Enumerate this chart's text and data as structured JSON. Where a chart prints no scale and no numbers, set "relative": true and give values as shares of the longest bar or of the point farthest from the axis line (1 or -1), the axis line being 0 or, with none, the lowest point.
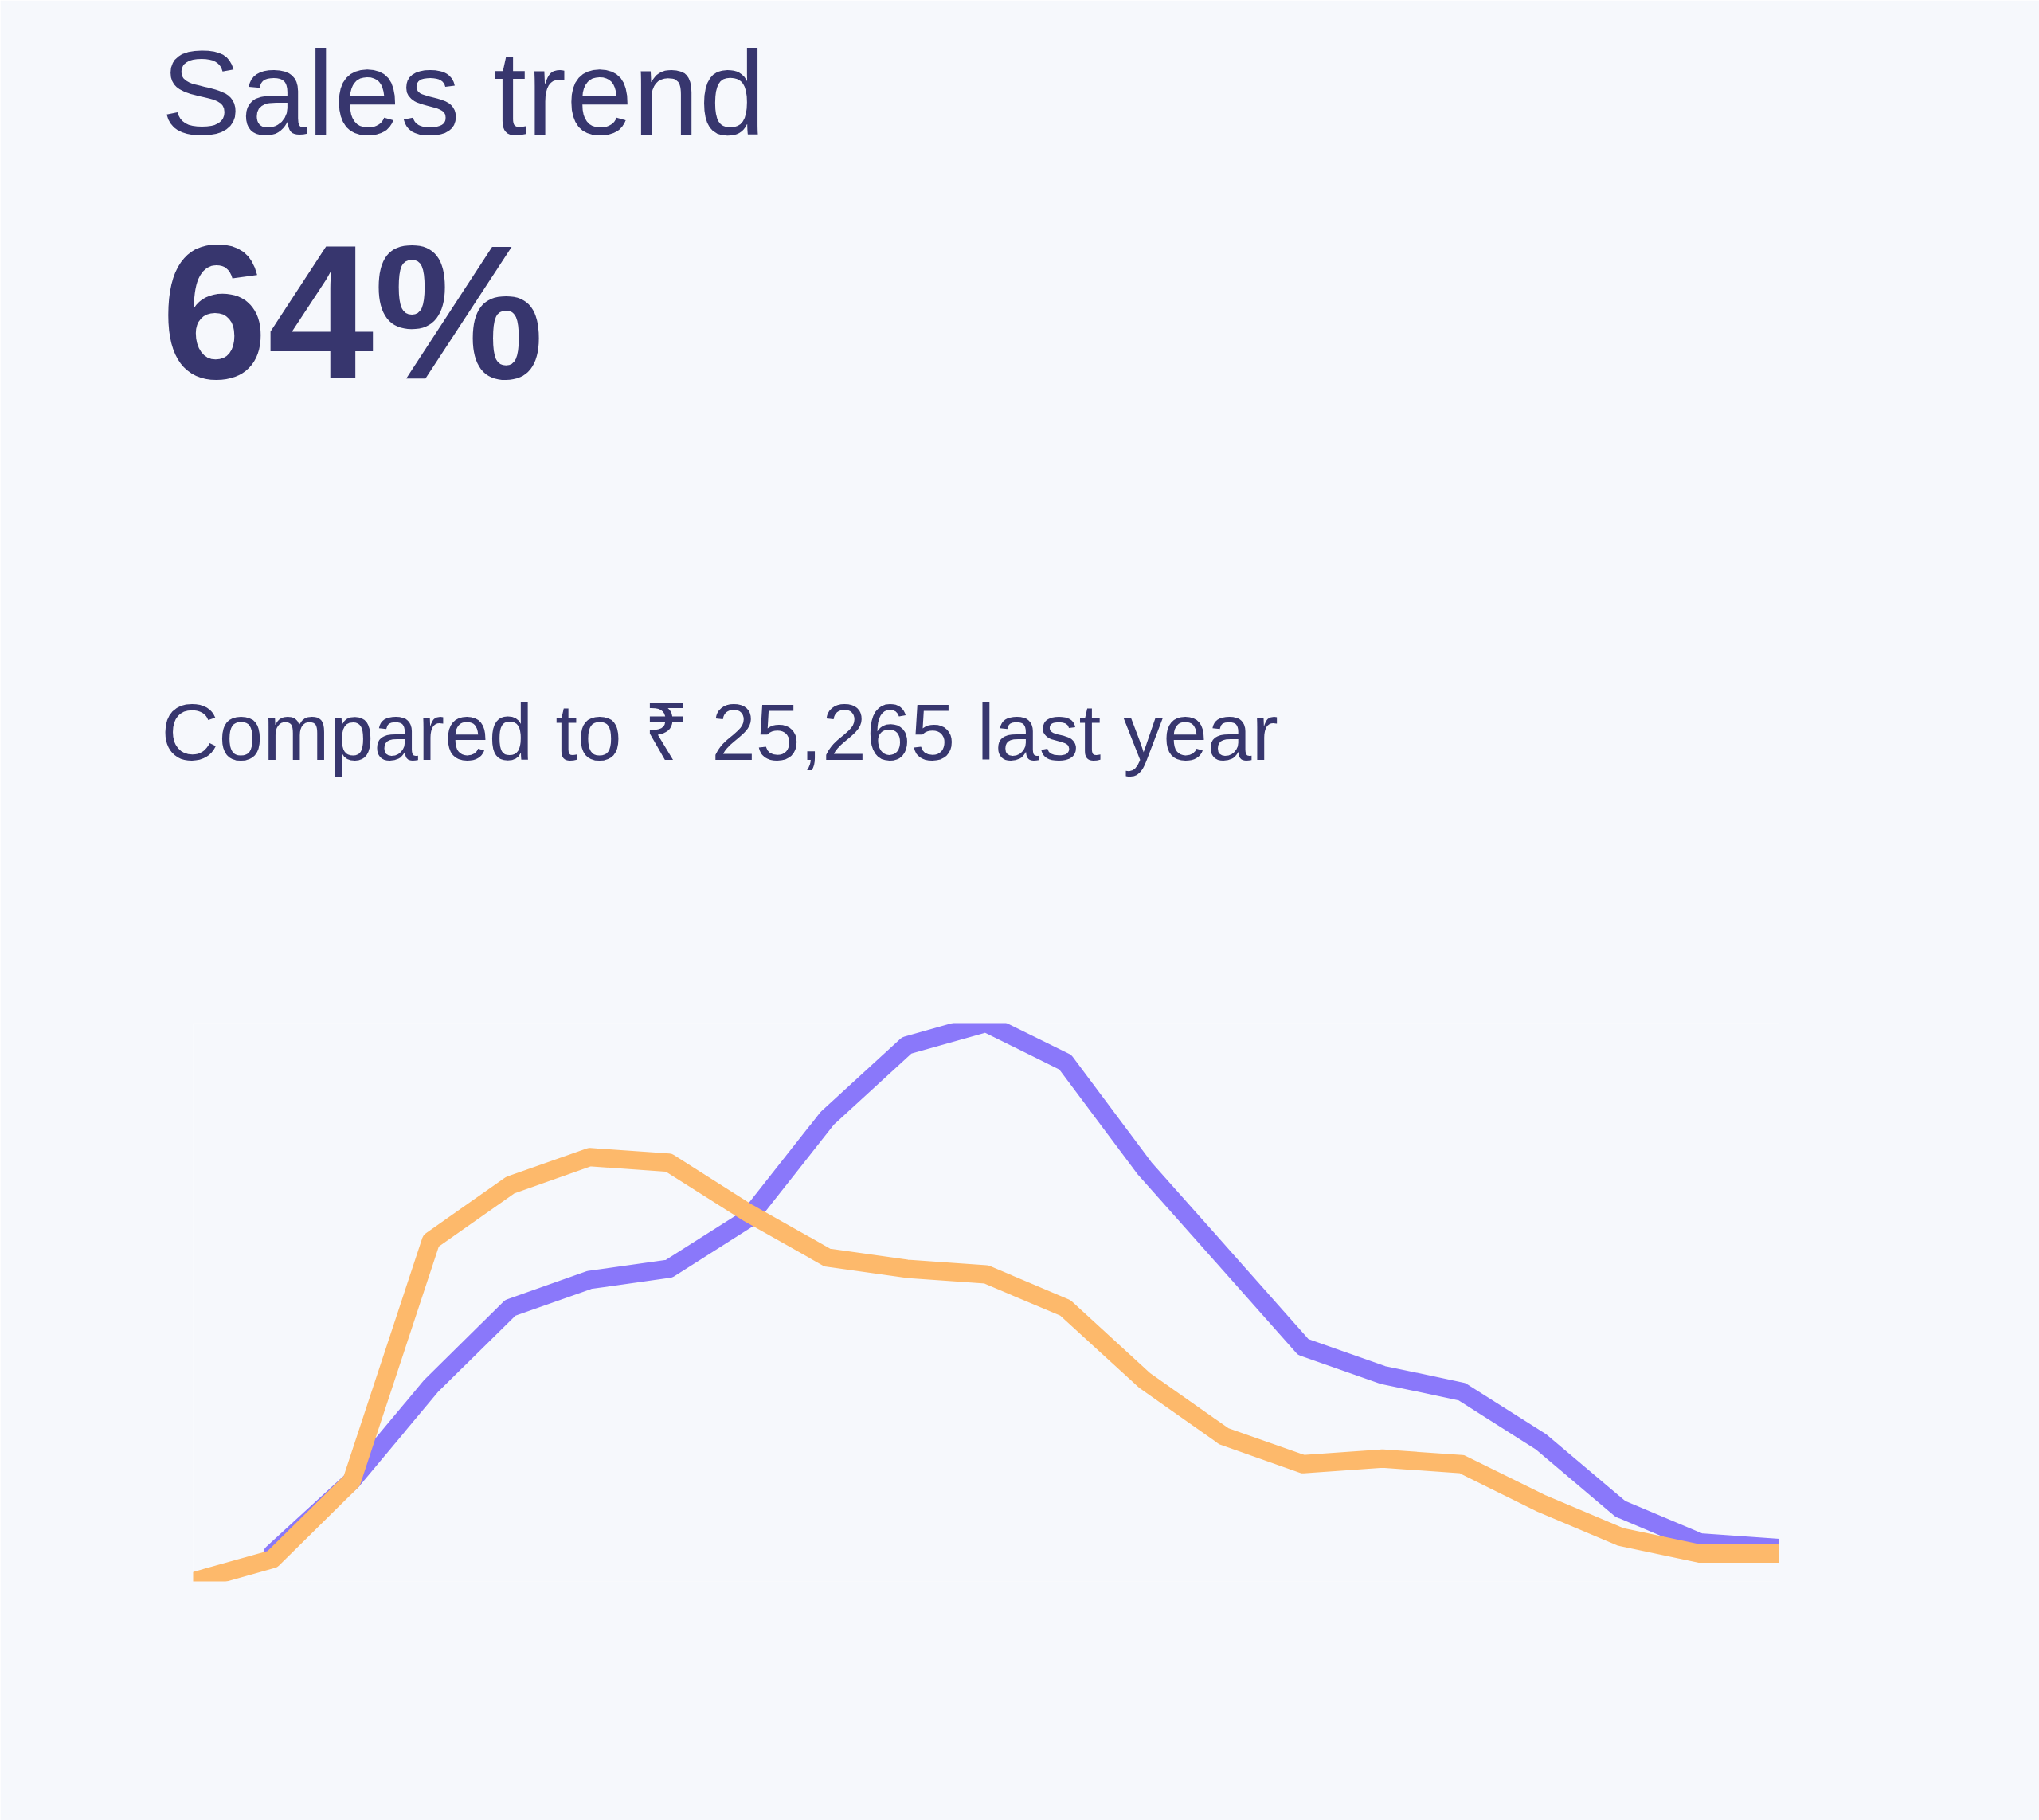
{
  "chart_data": {
    "type": "line",
    "title": "Sales trend",
    "subtitle": "64%",
    "annotations": [
      "Compared to ₹ 25,265 last year"
    ],
    "relative": true,
    "grid": false,
    "marker": "none",
    "line_style": "solid",
    "categories": [
      null,
      null,
      null,
      null,
      null,
      null,
      null,
      null,
      null,
      null,
      null,
      null,
      null,
      null,
      null,
      null,
      null,
      null,
      null,
      null,
      null
    ],
    "series": [
      {
        "color": "#8a78fa",
        "values": [
          null,
          0.05,
          0.18,
          0.35,
          0.49,
          0.54,
          0.56,
          0.65,
          0.83,
          0.96,
          1,
          0.93,
          0.74,
          0.58,
          0.42,
          0.37,
          0.34,
          0.25,
          0.13,
          0.07,
          0.06
        ]
      },
      {
        "color": "#fdb96b",
        "values": [
          0,
          0.04,
          0.18,
          0.61,
          0.71,
          0.76,
          0.75,
          0.66,
          0.58,
          0.56,
          0.55,
          0.49,
          0.36,
          0.26,
          0.21,
          0.22,
          0.21,
          0.14,
          0.08,
          0.05,
          0.05
        ]
      }
    ]
  }
}
